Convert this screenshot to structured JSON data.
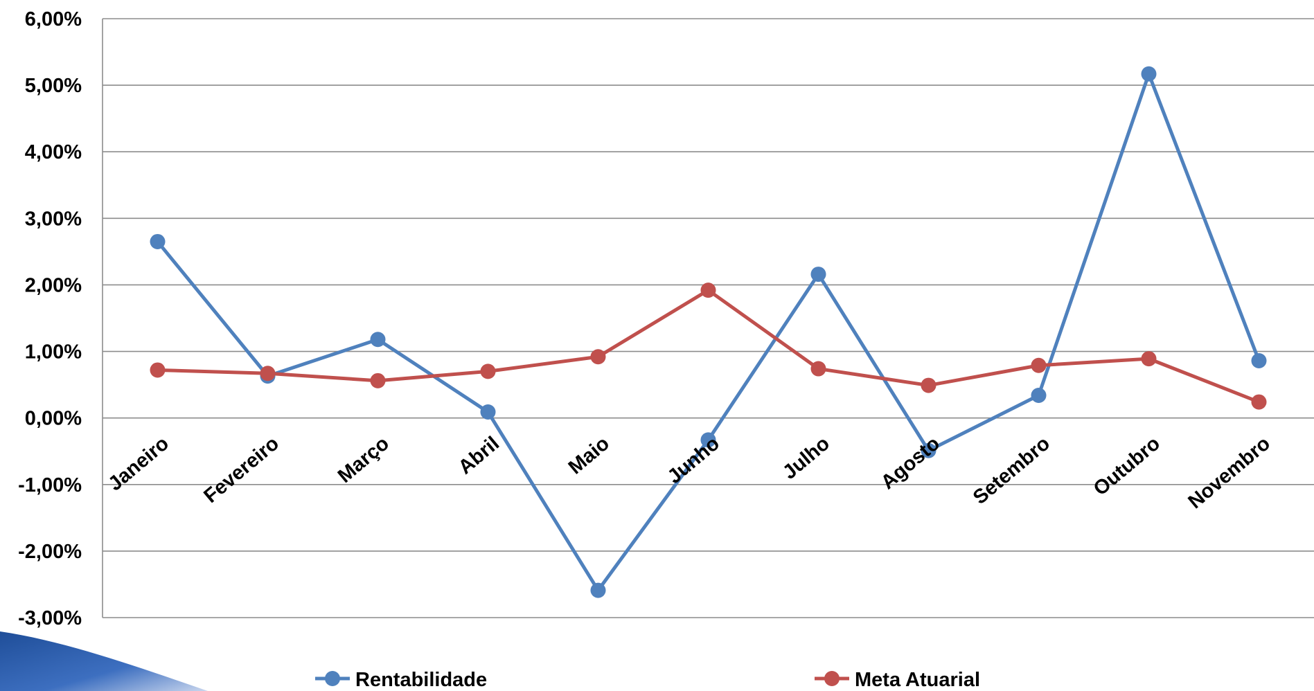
{
  "chart_data": {
    "type": "line",
    "categories": [
      "Janeiro",
      "Fevereiro",
      "Março",
      "Abril",
      "Maio",
      "Junho",
      "Julho",
      "Agosto",
      "Setembro",
      "Outubro",
      "Novembro"
    ],
    "series": [
      {
        "name": "Rentabilidade",
        "color": "#4F81BD",
        "values": [
          2.65,
          0.63,
          1.18,
          0.09,
          -2.59,
          -0.33,
          2.16,
          -0.49,
          0.34,
          5.17,
          0.86
        ]
      },
      {
        "name": "Meta Atuarial",
        "color": "#C0504D",
        "values": [
          0.72,
          0.67,
          0.56,
          0.7,
          0.92,
          1.92,
          0.74,
          0.49,
          0.79,
          0.89,
          0.24
        ]
      }
    ],
    "ylim": [
      -3,
      6
    ],
    "yticks": [
      -3,
      -2,
      -1,
      0,
      1,
      2,
      3,
      4,
      5,
      6
    ],
    "ytick_labels": [
      "-3,00%",
      "-2,00%",
      "-1,00%",
      "0,00%",
      "1,00%",
      "2,00%",
      "3,00%",
      "4,00%",
      "5,00%",
      "6,00%"
    ],
    "grid": true,
    "legend_position": "bottom",
    "title": "",
    "xlabel": "",
    "ylabel": ""
  }
}
